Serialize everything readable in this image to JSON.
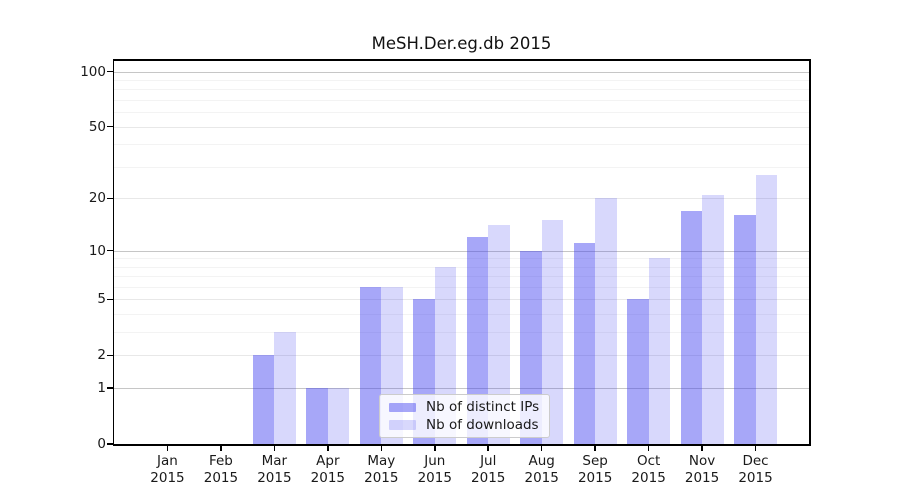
{
  "chart_data": {
    "type": "bar",
    "title": "MeSH.Der.eg.db 2015",
    "xlabel": "",
    "ylabel": "",
    "categories": [
      "Jan 2015",
      "Feb 2015",
      "Mar 2015",
      "Apr 2015",
      "May 2015",
      "Jun 2015",
      "Jul 2015",
      "Aug 2015",
      "Sep 2015",
      "Oct 2015",
      "Nov 2015",
      "Dec 2015"
    ],
    "x_tick_months": [
      "Jan",
      "Feb",
      "Mar",
      "Apr",
      "May",
      "Jun",
      "Jul",
      "Aug",
      "Sep",
      "Oct",
      "Nov",
      "Dec"
    ],
    "x_tick_year": "2015",
    "series": [
      {
        "name": "Nb of distinct IPs",
        "color": "rgba(60,60,240,0.45)",
        "values": [
          0,
          0,
          2,
          1,
          6,
          5,
          12,
          10,
          11,
          5,
          17,
          16
        ]
      },
      {
        "name": "Nb of downloads",
        "color": "rgba(60,60,240,0.20)",
        "values": [
          0,
          0,
          3,
          1,
          6,
          8,
          14,
          15,
          20,
          9,
          21,
          27
        ]
      }
    ],
    "yscale": "log10(value+1)",
    "yticks": [
      0,
      1,
      2,
      5,
      10,
      20,
      50,
      100
    ],
    "ylim": [
      0,
      115
    ],
    "grid": true,
    "legend_position": "bottom-center-inside",
    "colors": {
      "grid_decade": "#c6c6c6",
      "grid_labeled": "#e8e8e8",
      "grid_minor": "#f3f3f3",
      "spine": "#000000",
      "text": "#1a1a1a"
    }
  }
}
